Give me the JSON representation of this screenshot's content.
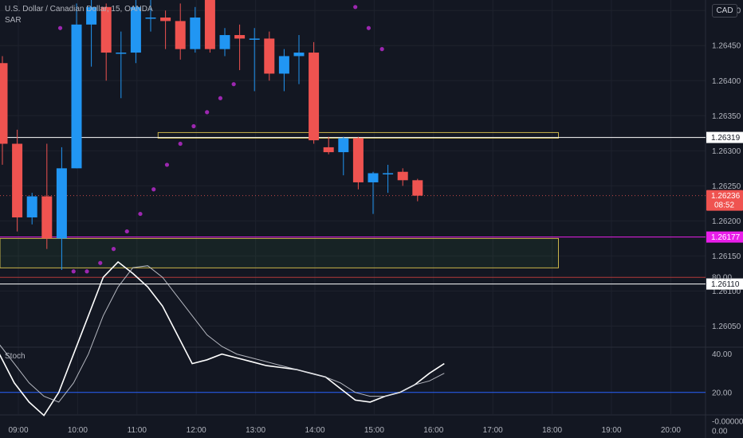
{
  "header": {
    "symbol": "U.S. Dollar / Canadian Dollar, 15, OANDA",
    "indicator": "SAR",
    "currency": "CAD"
  },
  "stoch_label": "Stoch",
  "colors": {
    "background": "#131722",
    "grid": "#1e222d",
    "up": "#2196f3",
    "down": "#ef5350",
    "sar": "#9c27b0",
    "zone_border": "#c9b44a",
    "magenta": "#e91ee9",
    "white": "#ffffff",
    "stoch_k": "#ffffff",
    "stoch_d": "#d1d4dc",
    "band_upper": "#b23a3a",
    "band_lower": "#2962ff"
  },
  "chart_data": [
    {
      "type": "candlestick",
      "title": "U.S. Dollar / Canadian Dollar, 15, OANDA",
      "x_ticks": [
        "09:00",
        "10:00",
        "11:00",
        "12:00",
        "13:00",
        "14:00",
        "15:00",
        "16:00",
        "17:00",
        "18:00",
        "19:00",
        "20:00"
      ],
      "y_ticks": [
        "1.26500",
        "1.26450",
        "1.26400",
        "1.26350",
        "1.26300",
        "1.26250",
        "1.26200",
        "1.26150",
        "1.26100",
        "1.26050"
      ],
      "ylim": [
        1.26021,
        1.26515
      ],
      "candles": [
        {
          "o": 1.26425,
          "h": 1.26435,
          "l": 1.2628,
          "c": 1.2631
        },
        {
          "o": 1.2631,
          "h": 1.2633,
          "l": 1.26185,
          "c": 1.26205
        },
        {
          "o": 1.26205,
          "h": 1.2624,
          "l": 1.26195,
          "c": 1.26235
        },
        {
          "o": 1.26235,
          "h": 1.2631,
          "l": 1.2616,
          "c": 1.26175
        },
        {
          "o": 1.26175,
          "h": 1.26305,
          "l": 1.2613,
          "c": 1.26275
        },
        {
          "o": 1.26275,
          "h": 1.2651,
          "l": 1.26275,
          "c": 1.2648
        },
        {
          "o": 1.2648,
          "h": 1.2652,
          "l": 1.2642,
          "c": 1.26505
        },
        {
          "o": 1.26505,
          "h": 1.2651,
          "l": 1.264,
          "c": 1.2644
        },
        {
          "o": 1.2644,
          "h": 1.2647,
          "l": 1.26375,
          "c": 1.2644
        },
        {
          "o": 1.2644,
          "h": 1.2652,
          "l": 1.26425,
          "c": 1.26505
        },
        {
          "o": 1.2649,
          "h": 1.2652,
          "l": 1.2647,
          "c": 1.2649
        },
        {
          "o": 1.2649,
          "h": 1.265,
          "l": 1.26445,
          "c": 1.26485
        },
        {
          "o": 1.26485,
          "h": 1.2651,
          "l": 1.2643,
          "c": 1.26445
        },
        {
          "o": 1.26445,
          "h": 1.26505,
          "l": 1.2644,
          "c": 1.2649
        },
        {
          "o": 1.26515,
          "h": 1.2652,
          "l": 1.2644,
          "c": 1.26445
        },
        {
          "o": 1.26445,
          "h": 1.26475,
          "l": 1.26435,
          "c": 1.26465
        },
        {
          "o": 1.26465,
          "h": 1.2648,
          "l": 1.26415,
          "c": 1.2646
        },
        {
          "o": 1.2646,
          "h": 1.26475,
          "l": 1.26385,
          "c": 1.2646
        },
        {
          "o": 1.2646,
          "h": 1.2647,
          "l": 1.264,
          "c": 1.2641
        },
        {
          "o": 1.2641,
          "h": 1.26445,
          "l": 1.26385,
          "c": 1.26435
        },
        {
          "o": 1.26435,
          "h": 1.26465,
          "l": 1.26395,
          "c": 1.2644
        },
        {
          "o": 1.2644,
          "h": 1.26455,
          "l": 1.2631,
          "c": 1.26315
        },
        {
          "o": 1.26305,
          "h": 1.2632,
          "l": 1.26295,
          "c": 1.26298
        },
        {
          "o": 1.26298,
          "h": 1.2632,
          "l": 1.26265,
          "c": 1.26318
        },
        {
          "o": 1.26318,
          "h": 1.2632,
          "l": 1.26245,
          "c": 1.26255
        },
        {
          "o": 1.26255,
          "h": 1.2627,
          "l": 1.2621,
          "c": 1.26268
        },
        {
          "o": 1.26268,
          "h": 1.2628,
          "l": 1.2624,
          "c": 1.26268
        },
        {
          "o": 1.2627,
          "h": 1.26275,
          "l": 1.2625,
          "c": 1.26258
        },
        {
          "o": 1.26258,
          "h": 1.2626,
          "l": 1.26228,
          "c": 1.26236
        }
      ],
      "sar": [
        {
          "i": 3.9,
          "v": 1.26475
        },
        {
          "i": 4.8,
          "v": 1.26128
        },
        {
          "i": 5.7,
          "v": 1.26128
        },
        {
          "i": 6.6,
          "v": 1.2614
        },
        {
          "i": 7.5,
          "v": 1.2616
        },
        {
          "i": 8.4,
          "v": 1.26185
        },
        {
          "i": 9.3,
          "v": 1.2621
        },
        {
          "i": 10.2,
          "v": 1.26245
        },
        {
          "i": 11.1,
          "v": 1.2628
        },
        {
          "i": 12.0,
          "v": 1.2631
        },
        {
          "i": 12.9,
          "v": 1.26335
        },
        {
          "i": 13.8,
          "v": 1.26355
        },
        {
          "i": 14.7,
          "v": 1.26375
        },
        {
          "i": 15.6,
          "v": 1.26395
        },
        {
          "i": 23.8,
          "v": 1.26505
        },
        {
          "i": 24.7,
          "v": 1.26475
        },
        {
          "i": 25.6,
          "v": 1.26445
        }
      ],
      "levels": [
        {
          "value": 1.26319,
          "label": "1.26319",
          "style": "white"
        },
        {
          "value": 1.26177,
          "label": "1.26177",
          "style": "magenta"
        },
        {
          "value": 1.2611,
          "label": "1.26110",
          "style": "white"
        }
      ],
      "zones": [
        {
          "y1": 1.26318,
          "y2": 1.26326,
          "from_index": 10.5,
          "to_index": 37.5
        },
        {
          "y1": 1.26133,
          "y2": 1.26175,
          "from_index": -0.5,
          "to_index": 37.5
        }
      ],
      "current_price": {
        "label": "1.26236",
        "countdown": "08:52",
        "value": 1.26236
      }
    },
    {
      "type": "line",
      "title": "Stoch",
      "y_ticks": [
        "80.00",
        "40.00",
        "20.00",
        "0.00",
        "-0.00000"
      ],
      "ylim": [
        0,
        100
      ],
      "bands": [
        80,
        20
      ],
      "series": [
        {
          "values": [
            40,
            25,
            15,
            8,
            20,
            40,
            60,
            80,
            88,
            82,
            75,
            65,
            50,
            35,
            37,
            40,
            38,
            36,
            34,
            33,
            32,
            30,
            28,
            22,
            16,
            15,
            18,
            20,
            24,
            30,
            35
          ]
        },
        {
          "values": [
            45,
            35,
            25,
            18,
            15,
            25,
            40,
            60,
            75,
            85,
            86,
            80,
            70,
            60,
            50,
            44,
            40,
            38,
            36,
            34,
            32,
            30,
            28,
            25,
            20,
            18,
            18,
            20,
            24,
            26,
            30
          ]
        }
      ]
    }
  ]
}
